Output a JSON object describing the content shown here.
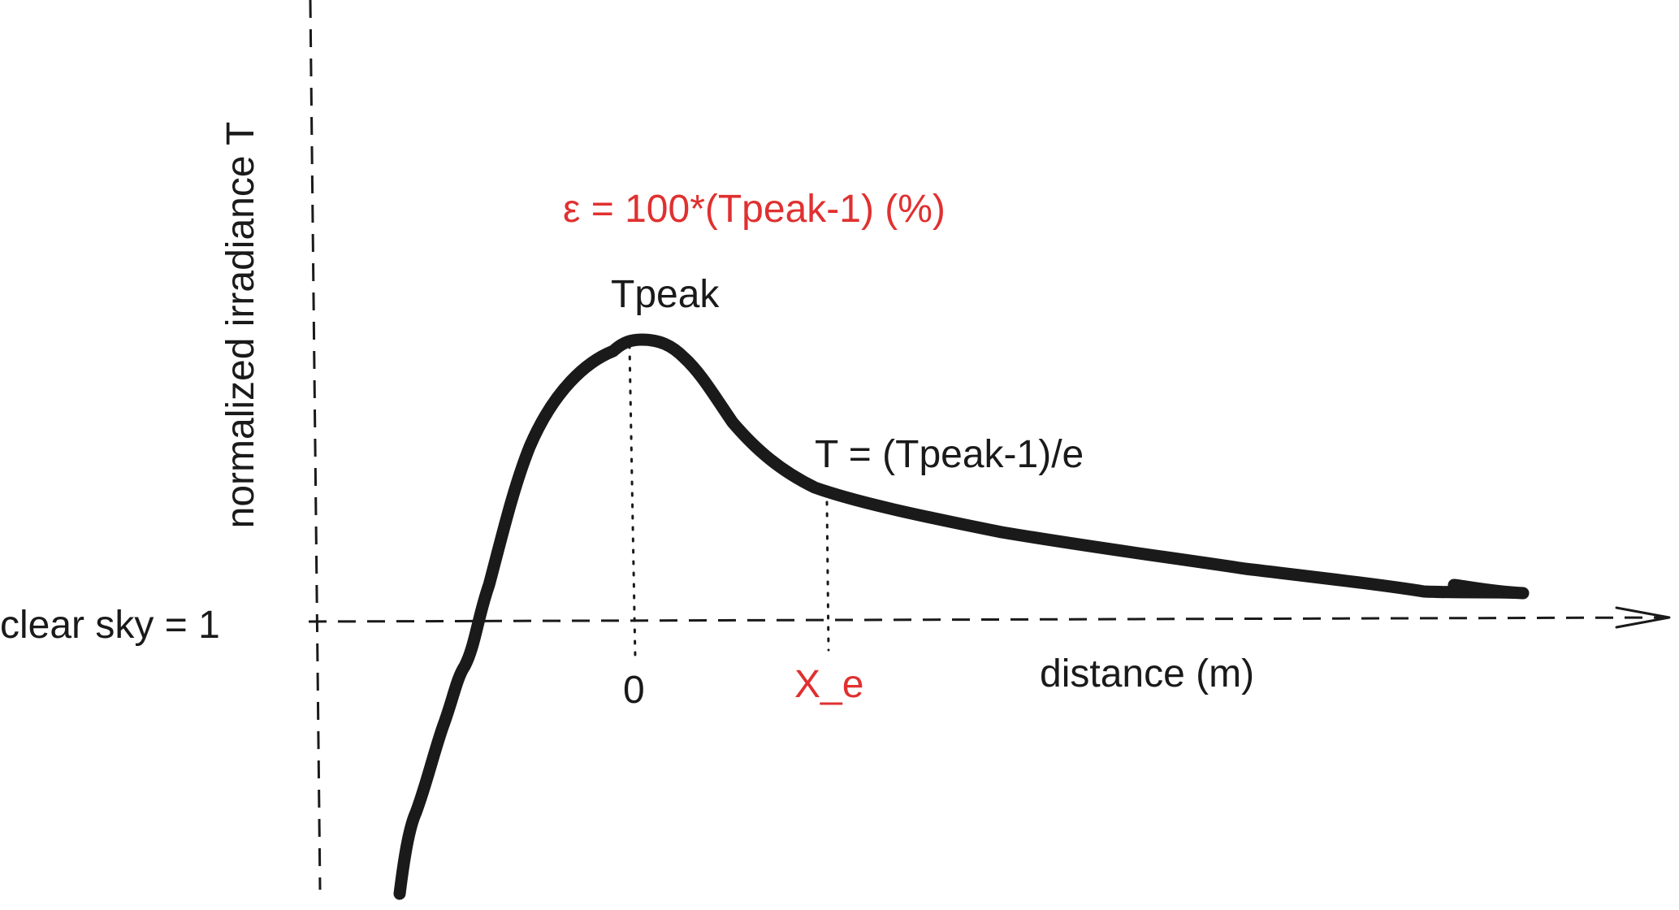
{
  "colors": {
    "ink": "#1a1a1a",
    "accent": "#e03030"
  },
  "labels": {
    "y_axis": "normalized irradiance T",
    "x_axis": "distance (m)",
    "clear_sky": "clear sky = 1",
    "peak": "Tpeak",
    "epsilon_formula": "ε = 100*(Tpeak-1) (%)",
    "e_folding": "T = (Tpeak-1)/e",
    "x_zero": "0",
    "x_e": "X_e"
  }
}
